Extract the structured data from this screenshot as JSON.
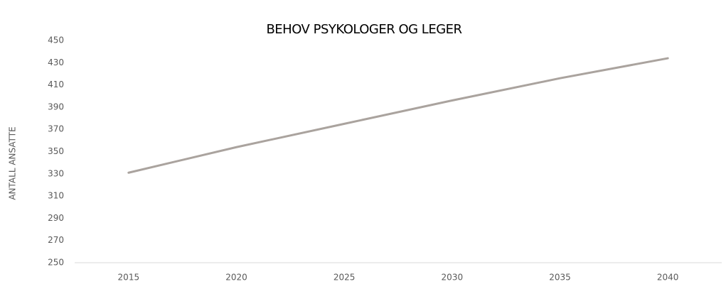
{
  "chart_data": {
    "type": "line",
    "title": "BEHOV PSYKOLOGER OG LEGER",
    "y_label": "ANTALL ANSATTE",
    "categories": [
      "2015",
      "2020",
      "2025",
      "2030",
      "2035",
      "2040"
    ],
    "values": [
      331,
      354,
      375,
      396,
      416,
      434
    ],
    "color": "#aaa39e",
    "ylim": [
      250,
      450
    ],
    "yticks": [
      250,
      270,
      290,
      310,
      330,
      350,
      370,
      390,
      410,
      430,
      450
    ],
    "grid": false
  }
}
